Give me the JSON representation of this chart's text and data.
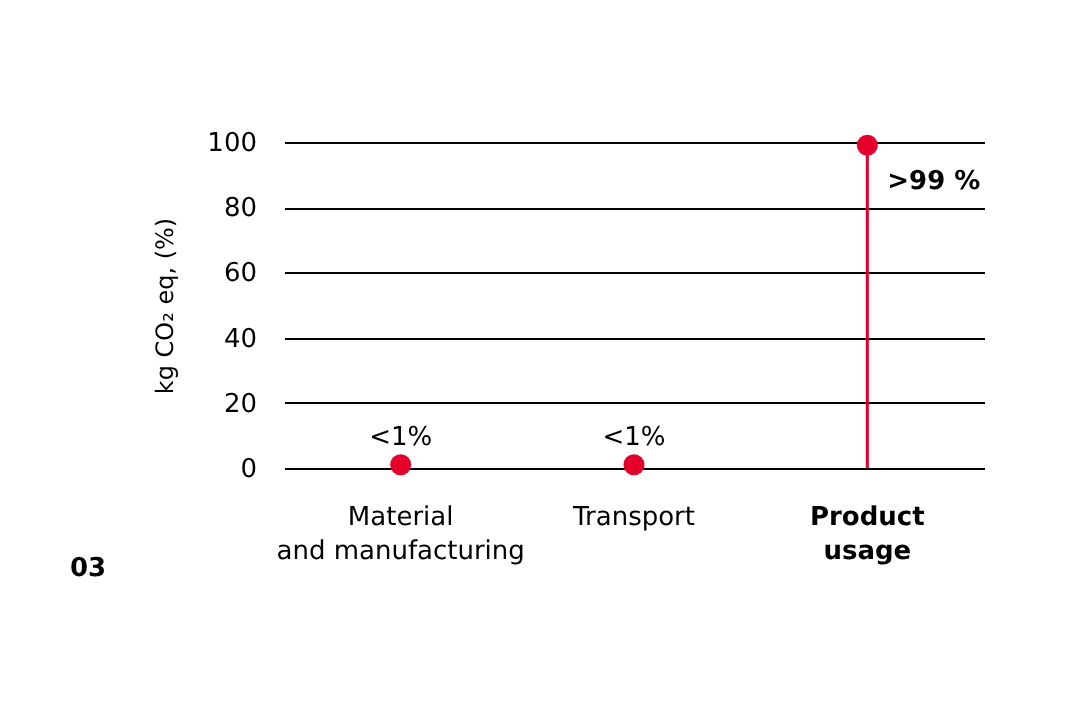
{
  "chart_data": {
    "type": "lollipop",
    "ylabel": "kg CO₂ eq, (%)",
    "categories": [
      "Material\nand manufacturing",
      "Transport",
      "Product\nusage"
    ],
    "values": [
      1,
      1,
      99
    ],
    "color": "#e4002b",
    "value_labels": [
      "<1%",
      "<1%",
      ">99 %"
    ],
    "ylim": [
      0,
      100
    ],
    "yticks": [
      0,
      20,
      40,
      60,
      80,
      100
    ],
    "grid": "y",
    "marker": "circle",
    "annotations": [
      "03"
    ]
  }
}
